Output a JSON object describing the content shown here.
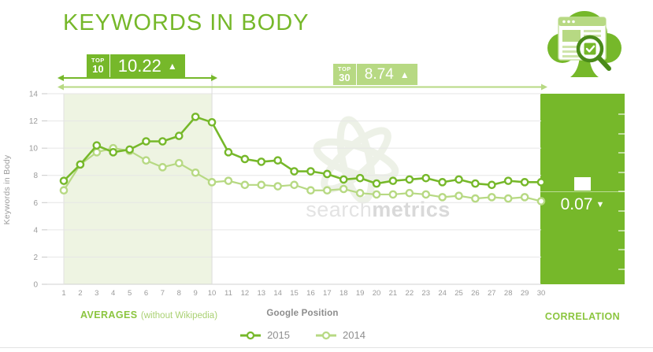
{
  "page": {
    "title": "KEYWORDS IN BODY"
  },
  "colors": {
    "primary_green": "#76b82a",
    "light_green": "#b7d983",
    "pale_fill": "#eef4e2",
    "grid": "#e6e6e6",
    "axis_text": "#9b9b9b",
    "label_green": "#8bc53f",
    "watermark_gray": "#e3e3e3"
  },
  "icons": {
    "logo": "searchmetrics-tree-with-browser-and-magnifier",
    "up_arrow": "▲",
    "down_arrow": "▼"
  },
  "badges": {
    "top10": {
      "scope_word": "TOP",
      "scope_num": "10",
      "value": "10.22",
      "arrow": "▲"
    },
    "top30": {
      "scope_word": "TOP",
      "scope_num": "30",
      "value": "8.74",
      "arrow": "▲"
    }
  },
  "correlation": {
    "value": "0.07",
    "arrow": "▼",
    "label": "CORRELATION"
  },
  "footnotes": {
    "averages_label": "AVERAGES",
    "averages_note": "(without Wikipedia)"
  },
  "watermark": {
    "part1": "search",
    "part2": "metrics"
  },
  "chart_data": {
    "type": "line",
    "title": "KEYWORDS IN BODY",
    "xlabel": "Google Position",
    "ylabel": "Keywords in Body",
    "x": [
      1,
      2,
      3,
      4,
      5,
      6,
      7,
      8,
      9,
      10,
      11,
      12,
      13,
      14,
      15,
      16,
      17,
      18,
      19,
      20,
      21,
      22,
      23,
      24,
      25,
      26,
      27,
      28,
      29,
      30
    ],
    "xlim": [
      1,
      30
    ],
    "ylim": [
      0,
      14
    ],
    "yticks": [
      0,
      2,
      4,
      6,
      8,
      10,
      12,
      14
    ],
    "grid": true,
    "legend_position": "bottom",
    "highlight_region": {
      "from": 1,
      "to": 10
    },
    "series": [
      {
        "name": "2015",
        "color": "#76b82a",
        "values": [
          7.6,
          8.8,
          10.2,
          9.7,
          9.9,
          10.5,
          10.5,
          10.9,
          12.3,
          11.9,
          9.7,
          9.2,
          9.0,
          9.1,
          8.3,
          8.3,
          8.1,
          7.7,
          7.8,
          7.4,
          7.6,
          7.7,
          7.8,
          7.5,
          7.7,
          7.4,
          7.3,
          7.6,
          7.5,
          7.5
        ]
      },
      {
        "name": "2014",
        "color": "#b7d983",
        "values": [
          6.9,
          8.8,
          9.7,
          10.0,
          9.8,
          9.1,
          8.6,
          8.9,
          8.2,
          7.5,
          7.6,
          7.3,
          7.3,
          7.2,
          7.3,
          6.9,
          6.9,
          7.0,
          6.7,
          6.6,
          6.6,
          6.7,
          6.6,
          6.4,
          6.5,
          6.3,
          6.4,
          6.3,
          6.4,
          6.1
        ]
      }
    ],
    "annotations": {
      "top10_average": 10.22,
      "top30_average": 8.74,
      "correlation": 0.07
    }
  }
}
